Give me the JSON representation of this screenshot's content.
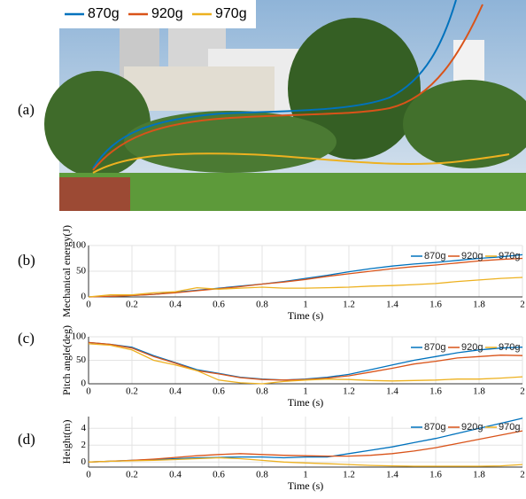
{
  "photo": {
    "panel_label": "(a)",
    "legend": [
      {
        "name": "870g",
        "color": "#0072BD"
      },
      {
        "name": "920g",
        "color": "#D95319"
      },
      {
        "name": "970g",
        "color": "#EDB120"
      }
    ]
  },
  "chart_data": [
    {
      "type": "line",
      "panel_label": "(b)",
      "y_label": "Mechanical energy(J)",
      "x_label": "Time (s)",
      "x": [
        0,
        0.1,
        0.2,
        0.3,
        0.4,
        0.5,
        0.6,
        0.7,
        0.8,
        0.9,
        1.0,
        1.1,
        1.2,
        1.3,
        1.4,
        1.5,
        1.6,
        1.7,
        1.8,
        1.9,
        2.0
      ],
      "series": [
        {
          "name": "870g",
          "color": "#0072BD",
          "values": [
            0,
            1,
            3,
            5,
            9,
            13,
            17,
            21,
            25,
            30,
            36,
            42,
            49,
            55,
            60,
            64,
            67,
            71,
            75,
            78,
            82
          ]
        },
        {
          "name": "920g",
          "color": "#D95319",
          "values": [
            0,
            1,
            3,
            5,
            8,
            12,
            16,
            20,
            25,
            29,
            34,
            40,
            45,
            50,
            55,
            59,
            62,
            66,
            70,
            73,
            75
          ]
        },
        {
          "name": "970g",
          "color": "#EDB120",
          "values": [
            0,
            4,
            4,
            8,
            10,
            18,
            15,
            17,
            19,
            17,
            17,
            18,
            19,
            21,
            22,
            24,
            26,
            30,
            33,
            36,
            38
          ]
        }
      ],
      "xlim": [
        0,
        2
      ],
      "xticks": [
        0,
        0.2,
        0.4,
        0.6,
        0.8,
        1,
        1.2,
        1.4,
        1.6,
        1.8,
        2
      ],
      "ylim": [
        0,
        100
      ],
      "yticks": [
        0,
        50,
        100
      ],
      "grid": true,
      "legend": "top-right"
    },
    {
      "type": "line",
      "panel_label": "(c)",
      "y_label": "Pitch angle(deg)",
      "x_label": "Time (s)",
      "x": [
        0,
        0.1,
        0.2,
        0.3,
        0.4,
        0.5,
        0.6,
        0.7,
        0.8,
        0.9,
        1.0,
        1.1,
        1.2,
        1.3,
        1.4,
        1.5,
        1.6,
        1.7,
        1.8,
        1.9,
        2.0
      ],
      "series": [
        {
          "name": "870g",
          "color": "#0072BD",
          "values": [
            88,
            84,
            78,
            60,
            45,
            30,
            22,
            14,
            10,
            8,
            10,
            14,
            20,
            30,
            40,
            50,
            58,
            66,
            72,
            76,
            78
          ]
        },
        {
          "name": "920g",
          "color": "#D95319",
          "values": [
            88,
            84,
            76,
            58,
            44,
            28,
            21,
            13,
            9,
            8,
            9,
            12,
            17,
            25,
            33,
            42,
            48,
            55,
            58,
            61,
            60
          ]
        },
        {
          "name": "970g",
          "color": "#EDB120",
          "values": [
            85,
            82,
            72,
            50,
            40,
            28,
            8,
            2,
            0,
            5,
            8,
            10,
            9,
            7,
            6,
            7,
            8,
            10,
            10,
            12,
            15
          ]
        }
      ],
      "xlim": [
        0,
        2
      ],
      "xticks": [
        0,
        0.2,
        0.4,
        0.6,
        0.8,
        1,
        1.2,
        1.4,
        1.6,
        1.8,
        2
      ],
      "ylim": [
        0,
        100
      ],
      "yticks": [
        0,
        50,
        100
      ],
      "grid": true,
      "legend": "top-right"
    },
    {
      "type": "line",
      "panel_label": "(d)",
      "y_label": "Height(m)",
      "x_label": "Time (s)",
      "x": [
        0,
        0.1,
        0.2,
        0.3,
        0.4,
        0.5,
        0.6,
        0.7,
        0.8,
        0.9,
        1.0,
        1.1,
        1.2,
        1.3,
        1.4,
        1.5,
        1.6,
        1.7,
        1.8,
        1.9,
        2.0
      ],
      "series": [
        {
          "name": "870g",
          "color": "#0072BD",
          "values": [
            0,
            0.1,
            0.2,
            0.3,
            0.4,
            0.5,
            0.55,
            0.6,
            0.6,
            0.5,
            0.6,
            0.6,
            1.0,
            1.4,
            1.8,
            2.3,
            2.8,
            3.4,
            4.0,
            4.6,
            5.2
          ]
        },
        {
          "name": "920g",
          "color": "#D95319",
          "values": [
            0,
            0.1,
            0.2,
            0.35,
            0.55,
            0.75,
            0.9,
            1.0,
            0.9,
            0.8,
            0.75,
            0.7,
            0.7,
            0.8,
            1.0,
            1.3,
            1.7,
            2.2,
            2.7,
            3.2,
            3.7
          ]
        },
        {
          "name": "970g",
          "color": "#EDB120",
          "values": [
            0,
            0.1,
            0.15,
            0.2,
            0.3,
            0.4,
            0.5,
            0.4,
            0.2,
            0.0,
            -0.1,
            -0.2,
            -0.3,
            -0.4,
            -0.45,
            -0.5,
            -0.5,
            -0.5,
            -0.5,
            -0.45,
            -0.3
          ]
        }
      ],
      "xlim": [
        0,
        2
      ],
      "xticks": [
        0,
        0.2,
        0.4,
        0.6,
        0.8,
        1,
        1.2,
        1.4,
        1.6,
        1.8,
        2
      ],
      "ylim": [
        -0.6,
        5.4
      ],
      "yticks": [
        0,
        2,
        4
      ],
      "grid": true,
      "legend": "top-right"
    }
  ]
}
